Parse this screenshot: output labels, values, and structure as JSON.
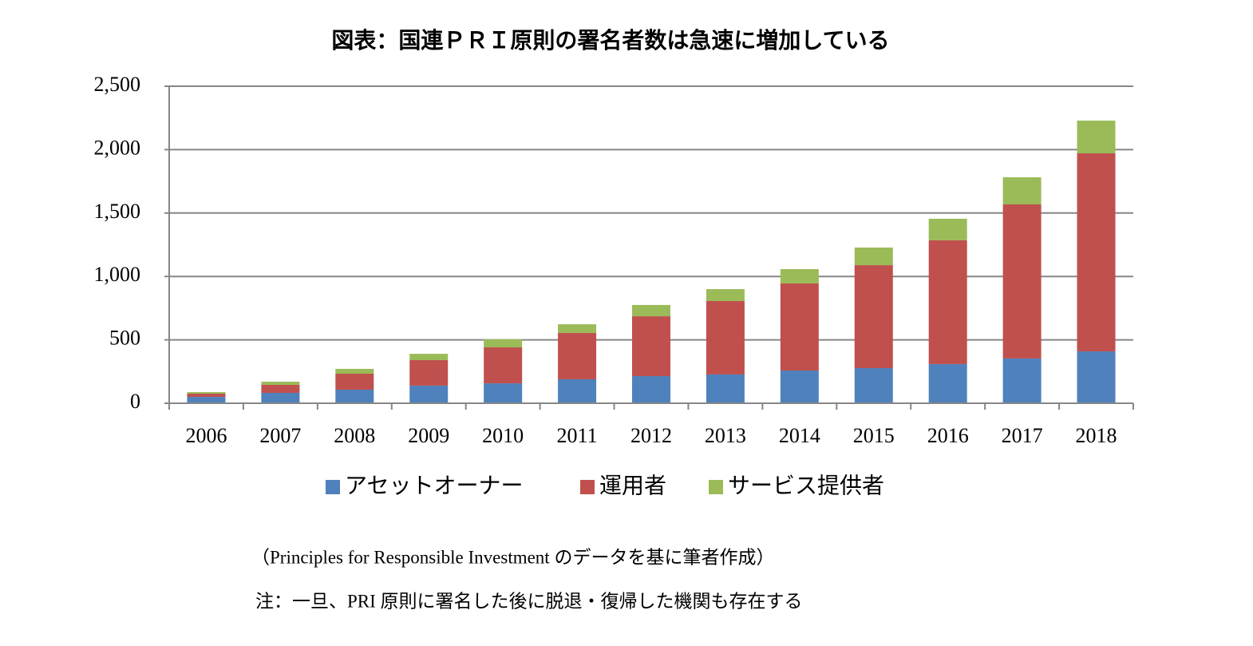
{
  "chart_data": {
    "type": "stacked-bar",
    "title": "図表：国連ＰＲＩ原則の署名者数は急速に増加している",
    "categories": [
      "2006",
      "2007",
      "2008",
      "2009",
      "2010",
      "2011",
      "2012",
      "2013",
      "2014",
      "2015",
      "2016",
      "2017",
      "2018"
    ],
    "series": [
      {
        "name": "アセットオーナー",
        "color": "#4f81bd",
        "values": [
          50,
          82,
          107,
          139,
          157,
          189,
          214,
          227,
          258,
          277,
          309,
          353,
          409
        ]
      },
      {
        "name": "運用者",
        "color": "#c0504d",
        "values": [
          26,
          63,
          126,
          201,
          284,
          365,
          472,
          579,
          687,
          812,
          976,
          1215,
          1562
        ]
      },
      {
        "name": "サービス提供者",
        "color": "#9bbb59",
        "values": [
          12,
          25,
          38,
          50,
          63,
          69,
          89,
          94,
          113,
          139,
          170,
          214,
          258
        ]
      }
    ],
    "ylim": [
      0,
      2500
    ],
    "yticks": [
      0,
      {
        "value": 500,
        "label": "500"
      },
      {
        "value": 1000,
        "label": "1,000"
      },
      {
        "value": 1500,
        "label": "1,500"
      },
      {
        "value": 2000,
        "label": "2,000"
      },
      {
        "value": 2500,
        "label": "2,500"
      }
    ],
    "grid": true,
    "legend": "bottom",
    "source": "（Principles for Responsible Investment のデータを基に筆者作成）",
    "note": "注：一旦、PRI 原則に署名した後に脱退・復帰した機関も存在する"
  }
}
